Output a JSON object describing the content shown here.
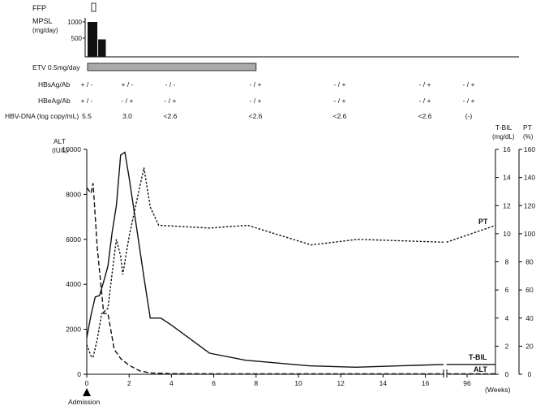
{
  "top_panel": {
    "ffp_label": "FFP",
    "mpsl_label_line1": "MPSL",
    "mpsl_label_line2": "(mg/day)",
    "mpsl_ticks": [
      "1000",
      "500"
    ],
    "etv_label": "ETV 0.5mg/day"
  },
  "markers": {
    "rows": [
      {
        "label": "HBsAg/Ab",
        "values": [
          "+ / -",
          "+ / -",
          "- / -",
          "- / +",
          "- / +",
          "- / +",
          "- / +"
        ]
      },
      {
        "label": "HBeAg/Ab",
        "values": [
          "+ / -",
          "- / +",
          "- / +",
          "- / +",
          "- / +",
          "- / +",
          "- / +"
        ]
      },
      {
        "label": "HBV-DNA (log copy/mL)",
        "values": [
          "5.5",
          "3.0",
          "<2.6",
          "<2.6",
          "<2.6",
          "<2.6",
          "(-)"
        ]
      }
    ]
  },
  "axes": {
    "left_title_line1": "ALT",
    "left_title_line2": "(IU/L)",
    "right1_title_line1": "T-BIL",
    "right1_title_line2": "(mg/dL)",
    "right2_title_line1": "PT",
    "right2_title_line2": "(%)",
    "x_unit": "(Weeks)",
    "admission_label": "Admission"
  },
  "chart_data": {
    "type": "line",
    "xlabel": "(Weeks)",
    "x_ticks": [
      "0",
      "2",
      "4",
      "6",
      "8",
      "10",
      "12",
      "14",
      "16",
      "96"
    ],
    "axis_break_after": 17,
    "left_axis": {
      "label": "ALT (IU/L)",
      "ticks": [
        "0",
        "2000",
        "4000",
        "6000",
        "8000",
        "10000"
      ],
      "ylim": [
        0,
        10000
      ]
    },
    "right_axis_1": {
      "label": "T-BIL (mg/dL)",
      "ticks": [
        "0",
        "2",
        "4",
        "6",
        "8",
        "10",
        "12",
        "14",
        "16"
      ],
      "ylim": [
        0,
        16
      ]
    },
    "right_axis_2": {
      "label": "PT (%)",
      "ticks": [
        "0",
        "20",
        "40",
        "60",
        "80",
        "100",
        "120",
        "140",
        "160"
      ],
      "ylim": [
        0,
        160
      ]
    },
    "series": [
      {
        "name": "ALT",
        "axis": "left",
        "style": "dashed",
        "points": [
          [
            0,
            8300
          ],
          [
            0.2,
            8050
          ],
          [
            0.3,
            8500
          ],
          [
            0.5,
            5600
          ],
          [
            0.8,
            2700
          ],
          [
            1.0,
            2700
          ],
          [
            1.3,
            1100
          ],
          [
            1.6,
            700
          ],
          [
            2.0,
            400
          ],
          [
            2.5,
            150
          ],
          [
            3.0,
            60
          ],
          [
            4.0,
            30
          ],
          [
            6.0,
            20
          ],
          [
            8.0,
            20
          ],
          [
            10.0,
            20
          ],
          [
            12.0,
            20
          ],
          [
            14.0,
            20
          ],
          [
            16.0,
            20
          ],
          [
            17.0,
            20
          ],
          [
            18.5,
            20
          ]
        ]
      },
      {
        "name": "T-BIL",
        "axis": "right1",
        "style": "solid",
        "points": [
          [
            0,
            2.6
          ],
          [
            0.2,
            4.2
          ],
          [
            0.4,
            5.5
          ],
          [
            0.6,
            5.6
          ],
          [
            0.8,
            6.6
          ],
          [
            1.0,
            7.7
          ],
          [
            1.2,
            10.1
          ],
          [
            1.4,
            12.0
          ],
          [
            1.6,
            15.6
          ],
          [
            1.8,
            15.8
          ],
          [
            2.0,
            14.0
          ],
          [
            2.3,
            11.0
          ],
          [
            2.7,
            6.9
          ],
          [
            3.0,
            4.0
          ],
          [
            3.5,
            4.0
          ],
          [
            4.0,
            3.5
          ],
          [
            5.8,
            1.5
          ],
          [
            7.5,
            1.0
          ],
          [
            10.5,
            0.6
          ],
          [
            12.7,
            0.5
          ],
          [
            17.0,
            0.7
          ],
          [
            18.5,
            0.7
          ]
        ]
      },
      {
        "name": "PT",
        "axis": "right2",
        "style": "dotted",
        "points": [
          [
            0,
            21
          ],
          [
            0.2,
            13
          ],
          [
            0.3,
            12
          ],
          [
            0.5,
            25
          ],
          [
            0.7,
            43
          ],
          [
            1.0,
            47
          ],
          [
            1.2,
            72
          ],
          [
            1.4,
            96
          ],
          [
            1.6,
            84
          ],
          [
            1.7,
            71
          ],
          [
            2.0,
            98
          ],
          [
            2.3,
            119
          ],
          [
            2.7,
            147
          ],
          [
            3.0,
            119
          ],
          [
            3.4,
            106
          ],
          [
            5.8,
            104
          ],
          [
            7.6,
            106
          ],
          [
            10.6,
            92
          ],
          [
            12.8,
            96
          ],
          [
            17.0,
            94
          ],
          [
            18.5,
            106
          ]
        ]
      }
    ],
    "series_labels": [
      "PT",
      "T-BIL",
      "ALT"
    ],
    "mpsl_doses": [
      {
        "x_start": 0,
        "x_end": 0.5,
        "value": 1000
      },
      {
        "x_start": 0.5,
        "x_end": 0.9,
        "value": 500
      }
    ],
    "mpsl_ylim": [
      0,
      1000
    ],
    "ffp_given": [
      {
        "x_start": 0.3,
        "x_end": 0.5
      }
    ],
    "etv_period": {
      "x_start": 0,
      "x_end": 8
    },
    "marker_timepoints": [
      0,
      2,
      4,
      8,
      12,
      16,
      18
    ]
  }
}
